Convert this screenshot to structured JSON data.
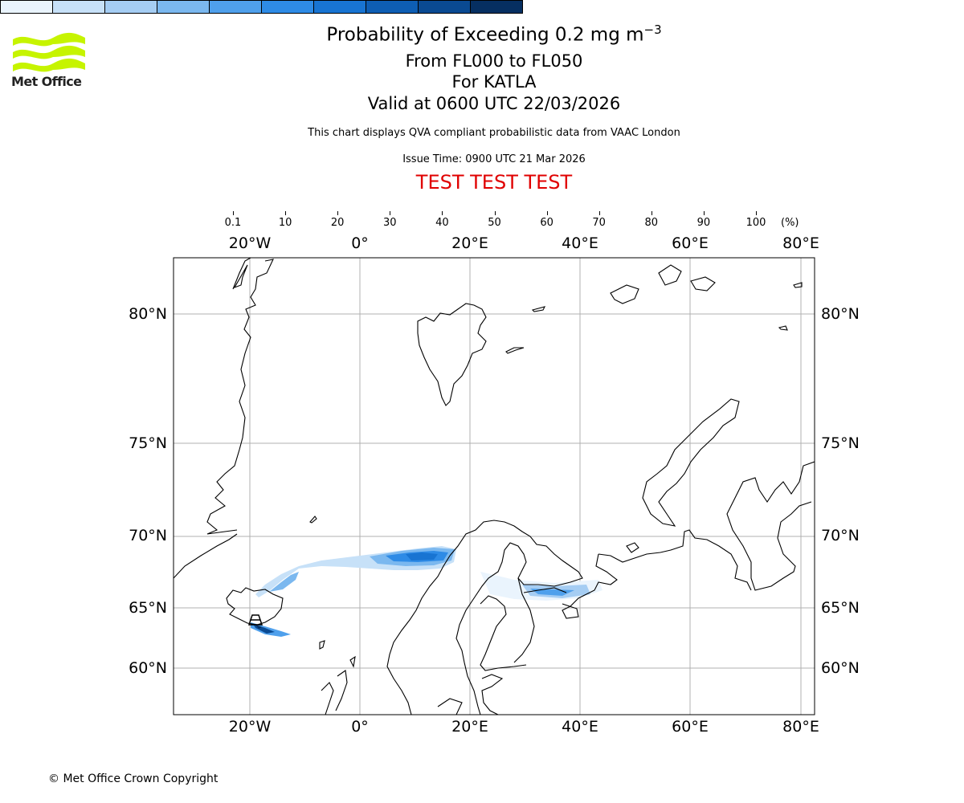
{
  "logo": {
    "name": "Met Office",
    "colors": [
      "#c6f400",
      "#222222"
    ]
  },
  "title": {
    "line1_prefix": "Probability of Exceeding 0.2 mg m",
    "line1_exponent": "−3",
    "line2": "From FL000 to FL050",
    "line3": "For KATLA",
    "line4": "Valid at 0600 UTC 22/03/2026"
  },
  "subtitle": "This chart displays QVA compliant probabilistic data from VAAC London",
  "issue_time": "Issue Time: 0900 UTC 21 Mar 2026",
  "test_banner": "TEST TEST TEST",
  "colorbar": {
    "ticks": [
      "0.1",
      "10",
      "20",
      "30",
      "40",
      "50",
      "60",
      "70",
      "80",
      "90",
      "100"
    ],
    "unit": "(%)",
    "colors": [
      "#eaf4fd",
      "#c7e1f8",
      "#a5cdf3",
      "#7bb8ef",
      "#4fa0ec",
      "#2e8be6",
      "#1874d2",
      "#0e5eb4",
      "#0a4a92",
      "#062f61"
    ]
  },
  "map": {
    "lon_labels": [
      "20°W",
      "0°",
      "20°E",
      "40°E",
      "60°E",
      "80°E"
    ],
    "lat_labels": [
      "80°N",
      "75°N",
      "70°N",
      "65°N",
      "60°N"
    ],
    "volcano": "KATLA"
  },
  "copyright": "© Met Office Crown Copyright"
}
